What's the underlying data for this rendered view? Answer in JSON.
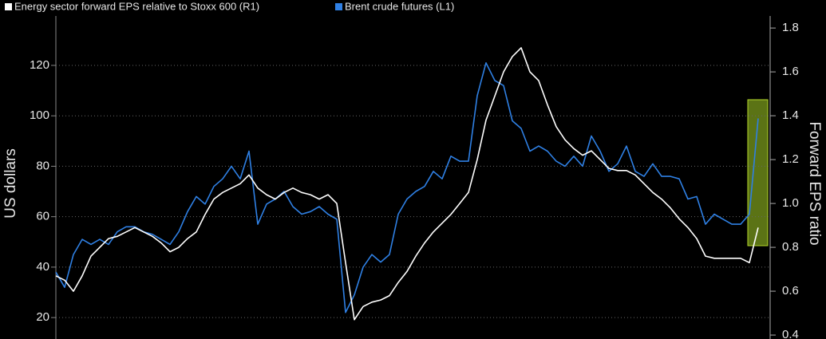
{
  "chart_data": {
    "type": "line",
    "series": [
      {
        "name": "Energy sector forward EPS relative to Stoxx 600 (R1)",
        "color": "#ffffff",
        "axis": "y2",
        "values": [
          0.67,
          0.65,
          0.6,
          0.67,
          0.76,
          0.8,
          0.84,
          0.85,
          0.87,
          0.89,
          0.87,
          0.85,
          0.82,
          0.78,
          0.8,
          0.84,
          0.87,
          0.95,
          1.02,
          1.05,
          1.07,
          1.09,
          1.13,
          1.07,
          1.04,
          1.02,
          1.05,
          1.07,
          1.05,
          1.04,
          1.02,
          1.04,
          1.0,
          0.73,
          0.47,
          0.53,
          0.55,
          0.56,
          0.58,
          0.64,
          0.69,
          0.76,
          0.82,
          0.87,
          0.91,
          0.95,
          1.0,
          1.05,
          1.2,
          1.38,
          1.49,
          1.6,
          1.67,
          1.71,
          1.6,
          1.56,
          1.45,
          1.35,
          1.29,
          1.25,
          1.22,
          1.24,
          1.2,
          1.16,
          1.15,
          1.15,
          1.13,
          1.09,
          1.05,
          1.02,
          0.98,
          0.93,
          0.89,
          0.84,
          0.76,
          0.75,
          0.75,
          0.75,
          0.75,
          0.73,
          0.89
        ]
      },
      {
        "name": "Brent crude futures (L1)",
        "color": "#2f80e4",
        "values": [
          38,
          32,
          45,
          51,
          49,
          51,
          49,
          54,
          56,
          56,
          54,
          53,
          51,
          49,
          54,
          62,
          68,
          65,
          72,
          75,
          80,
          75,
          86,
          57,
          65,
          67,
          70,
          64,
          61,
          62,
          64,
          61,
          59,
          22,
          29,
          40,
          45,
          42,
          45,
          61,
          67,
          70,
          72,
          78,
          75,
          84,
          82,
          82,
          108,
          121,
          114,
          112,
          98,
          95,
          86,
          88,
          86,
          82,
          80,
          84,
          80,
          92,
          86,
          78,
          81,
          88,
          78,
          76,
          81,
          76,
          76,
          75,
          67,
          68,
          57,
          61,
          59,
          57,
          57,
          61,
          99
        ]
      }
    ],
    "ylabel": "US dollars",
    "y2label": "Forward EPS ratio",
    "ylim": [
      11.5,
      139.6
    ],
    "yticks": [
      20,
      40,
      60,
      80,
      100,
      120
    ],
    "y2lim": [
      0.382,
      1.855
    ],
    "y2ticks": [
      0.4,
      0.6,
      0.8,
      {
        "value": 1,
        "label": "1.0"
      },
      1.2,
      1.4,
      1.6,
      1.8
    ],
    "grid": true
  }
}
